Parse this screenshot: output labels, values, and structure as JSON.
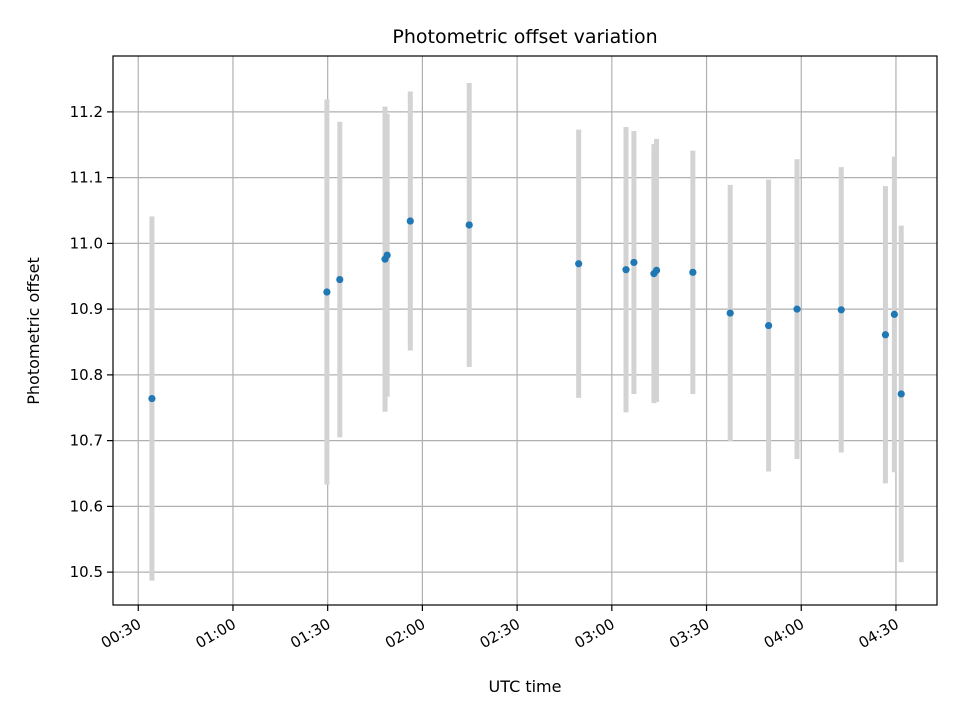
{
  "chart_data": {
    "type": "scatter",
    "title": "Photometric offset variation",
    "xlabel": "UTC time",
    "ylabel": "Photometric offset",
    "x_unit": "UTC",
    "xlim": [
      "00:22",
      "04:43"
    ],
    "ylim": [
      10.45,
      11.285
    ],
    "x_ticks": [
      "00:30",
      "01:00",
      "01:30",
      "02:00",
      "02:30",
      "03:00",
      "03:30",
      "04:00",
      "04:30"
    ],
    "y_ticks": [
      "10.5",
      "10.6",
      "10.7",
      "10.8",
      "10.9",
      "11.0",
      "11.1",
      "11.2"
    ],
    "grid": true,
    "marker_color": "#1f77b4",
    "errorbar_color": "#d3d3d3",
    "points": [
      {
        "time": "00:34:20",
        "y": 10.764,
        "err": 0.277
      },
      {
        "time": "01:29:45",
        "y": 10.926,
        "err": 0.293
      },
      {
        "time": "01:33:50",
        "y": 10.945,
        "err": 0.24
      },
      {
        "time": "01:48:10",
        "y": 10.976,
        "err": 0.232
      },
      {
        "time": "01:48:50",
        "y": 10.982,
        "err": 0.215
      },
      {
        "time": "01:56:10",
        "y": 11.034,
        "err": 0.197
      },
      {
        "time": "02:14:50",
        "y": 11.028,
        "err": 0.216
      },
      {
        "time": "02:49:30",
        "y": 10.969,
        "err": 0.204
      },
      {
        "time": "03:04:30",
        "y": 10.96,
        "err": 0.217
      },
      {
        "time": "03:07:00",
        "y": 10.971,
        "err": 0.2
      },
      {
        "time": "03:13:20",
        "y": 10.954,
        "err": 0.197
      },
      {
        "time": "03:14:10",
        "y": 10.959,
        "err": 0.2
      },
      {
        "time": "03:25:40",
        "y": 10.956,
        "err": 0.185
      },
      {
        "time": "03:37:30",
        "y": 10.894,
        "err": 0.195
      },
      {
        "time": "03:49:40",
        "y": 10.875,
        "err": 0.222
      },
      {
        "time": "03:58:40",
        "y": 10.9,
        "err": 0.228
      },
      {
        "time": "04:12:40",
        "y": 10.899,
        "err": 0.217
      },
      {
        "time": "04:26:40",
        "y": 10.861,
        "err": 0.226
      },
      {
        "time": "04:29:30",
        "y": 10.892,
        "err": 0.24
      },
      {
        "time": "04:31:40",
        "y": 10.771,
        "err": 0.256
      }
    ]
  }
}
